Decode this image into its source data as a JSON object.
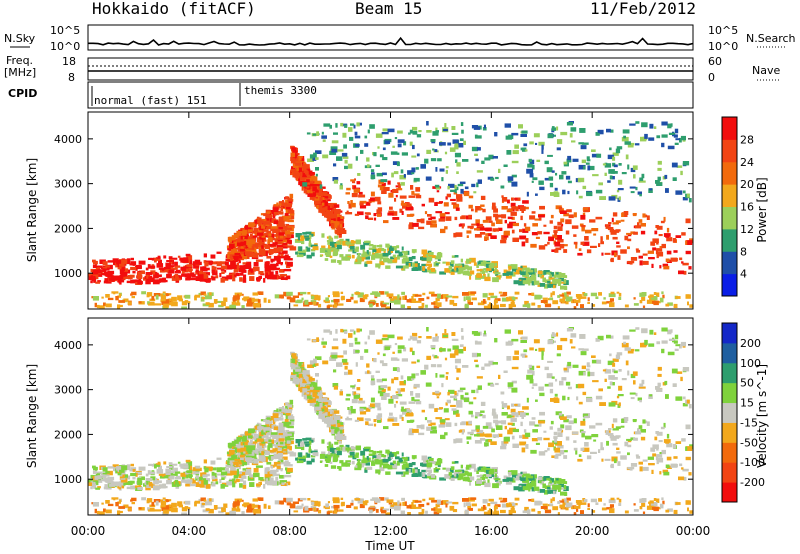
{
  "header": {
    "station": "Hokkaido (fitACF)",
    "beam": "Beam 15",
    "date": "11/Feb/2012"
  },
  "nsky_panel": {
    "left_label": "N.Sky",
    "right_label": "N.Search",
    "left_ticks": [
      "10^5",
      "10^0"
    ],
    "right_ticks": [
      "10^5",
      "10^0"
    ]
  },
  "freq_panel": {
    "left_label_1": "Freq.",
    "left_label_2": "[MHz]",
    "left_ticks": [
      "18",
      "8"
    ],
    "right_label": "Nave",
    "right_ticks": [
      "60",
      "0"
    ]
  },
  "cpid_panel": {
    "label": "CPID",
    "modes": [
      {
        "name": "normal (fast) 151",
        "start_hour": 0
      },
      {
        "name": "themis 3300",
        "start_hour": 6
      }
    ]
  },
  "chart_data": {
    "type": "heatmap",
    "x_ticks": [
      "00:00",
      "04:00",
      "08:00",
      "12:00",
      "16:00",
      "20:00",
      "00:00"
    ],
    "x_tick_hours": [
      0,
      4,
      8,
      12,
      16,
      20,
      24
    ],
    "xlabel": "Time UT",
    "xlim": [
      0,
      24
    ],
    "panels": [
      {
        "name": "power",
        "ylabel": "Slant Range [km]",
        "ylim": [
          200,
          4600
        ],
        "y_ticks": [
          1000,
          2000,
          3000,
          4000
        ],
        "colorbar_label": "Power [dB]",
        "colorbar_ticks": [
          "4",
          "8",
          "12",
          "16",
          "20",
          "24",
          "28"
        ],
        "colorbar_colors": [
          "#0a1ee6",
          "#1f4fa8",
          "#2e9e6e",
          "#9ccf5a",
          "#f2a81c",
          "#f26a0c",
          "#f24413",
          "#f20d0d"
        ]
      },
      {
        "name": "velocity",
        "ylabel": "Slant Range [km]",
        "ylim": [
          200,
          4600
        ],
        "y_ticks": [
          1000,
          2000,
          3000,
          4000
        ],
        "colorbar_label": "Velocity [m s^-1]",
        "colorbar_ticks": [
          "200",
          "100",
          "50",
          "15",
          "-15",
          "-50",
          "-100",
          "-200"
        ],
        "colorbar_colors": [
          "#1428c8",
          "#1f5fa0",
          "#2e9e6e",
          "#7fd23c",
          "#c8c8c0",
          "#f2a81c",
          "#f26a0c",
          "#f24413",
          "#f20d0d"
        ]
      }
    ],
    "scatter_bands": [
      {
        "name": "main-band-early",
        "t0": 0,
        "t1": 8,
        "r0a": 800,
        "r1a": 1300,
        "r0b": 900,
        "r1b": 1600,
        "power_class": 7,
        "vel_class": 4
      },
      {
        "name": "late-spread",
        "t0": 5.5,
        "t1": 8,
        "r0a": 1300,
        "r1a": 1800,
        "r0b": 1600,
        "r1b": 2800,
        "power_class": 6,
        "vel_class": 4
      },
      {
        "name": "arc-descending",
        "t0": 8,
        "t1": 10,
        "r0a": 3300,
        "r1a": 3900,
        "r0b": 1800,
        "r1b": 2300,
        "power_class": 6,
        "vel_class": 4
      },
      {
        "name": "high-band",
        "t0": 10.2,
        "t1": 24,
        "r0a": 2300,
        "r1a": 3200,
        "r0b": 1000,
        "r1b": 2200,
        "power_class": 6,
        "vel_class": 4
      },
      {
        "name": "lower-branch",
        "t0": 8.2,
        "t1": 19,
        "r0a": 1400,
        "r1a": 2000,
        "r0b": 700,
        "r1b": 1000,
        "power_class": 3,
        "vel_class": 3
      },
      {
        "name": "sparse-far",
        "t0": 8.5,
        "t1": 24,
        "r0a": 3000,
        "r1a": 4400,
        "r0b": 2600,
        "r1b": 4400,
        "power_class": 2,
        "vel_class": 4
      },
      {
        "name": "ground-near",
        "t0": 0,
        "t1": 24,
        "r0a": 250,
        "r1a": 600,
        "r0b": 250,
        "r1b": 600,
        "power_class": 4,
        "vel_class": 5
      }
    ]
  }
}
